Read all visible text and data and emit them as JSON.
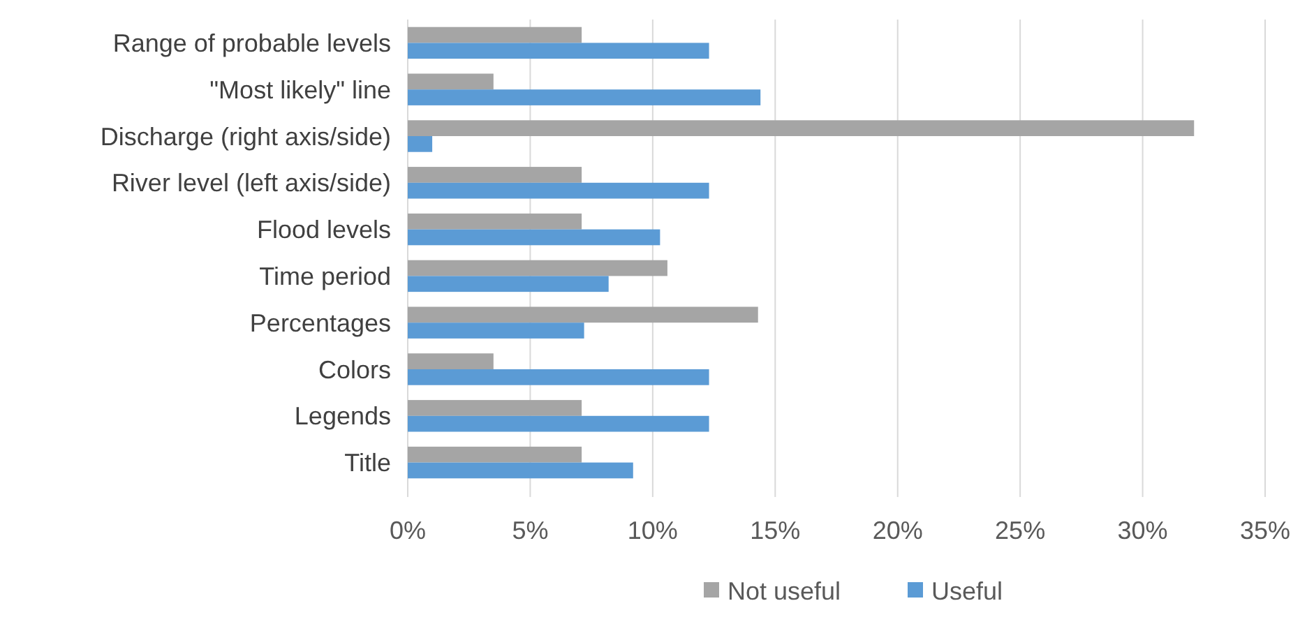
{
  "chart_data": {
    "type": "bar",
    "orientation": "horizontal",
    "categories": [
      "Range of probable levels",
      "\"Most likely\" line",
      "Discharge (right axis/side)",
      "River level (left axis/side)",
      "Flood levels",
      "Time period",
      "Percentages",
      "Colors",
      "Legends",
      "Title"
    ],
    "series": [
      {
        "name": "Not useful",
        "color": "#a5a5a5",
        "values": [
          7.1,
          3.5,
          32.1,
          7.1,
          7.1,
          10.6,
          14.3,
          3.5,
          7.1,
          7.1
        ]
      },
      {
        "name": "Useful",
        "color": "#5b9bd5",
        "values": [
          12.3,
          14.4,
          1.0,
          12.3,
          10.3,
          8.2,
          7.2,
          12.3,
          12.3,
          9.2
        ]
      }
    ],
    "xlim": [
      0,
      35
    ],
    "xticks": [
      {
        "value": 0,
        "label": "0%"
      },
      {
        "value": 5,
        "label": "5%"
      },
      {
        "value": 10,
        "label": "10%"
      },
      {
        "value": 15,
        "label": "15%"
      },
      {
        "value": 20,
        "label": "20%"
      },
      {
        "value": 25,
        "label": "25%"
      },
      {
        "value": 30,
        "label": "30%"
      },
      {
        "value": 35,
        "label": "35%"
      }
    ],
    "grid": "x",
    "legend": "bottom"
  }
}
